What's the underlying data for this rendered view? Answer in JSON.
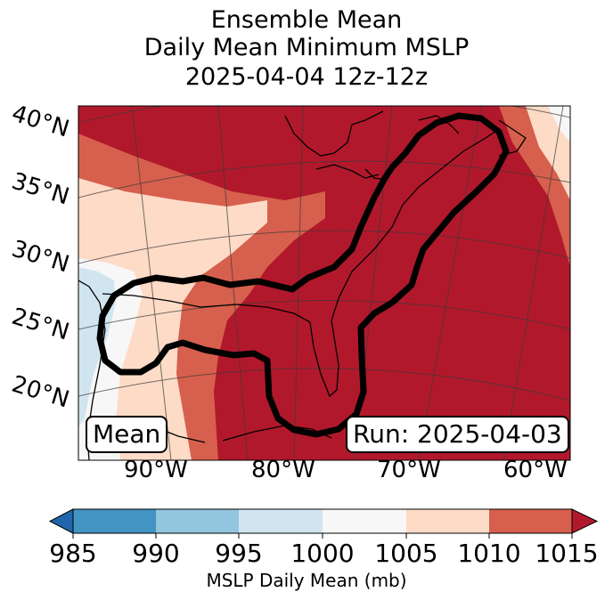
{
  "title": {
    "line1": "Ensemble Mean",
    "line2": "Daily Mean Minimum MSLP",
    "line3": "2025-04-04 12z-12z"
  },
  "map": {
    "lat_labels": [
      "40°N",
      "35°N",
      "30°N",
      "25°N",
      "20°N"
    ],
    "lon_labels": [
      "90°W",
      "80°W",
      "70°W",
      "60°W"
    ],
    "mean_label": "Mean",
    "run_label": "Run: 2025-04-03"
  },
  "colorbar": {
    "ticks": [
      "985",
      "990",
      "995",
      "1000",
      "1005",
      "1010",
      "1015"
    ],
    "label": "MSLP Daily Mean (mb)",
    "colors": {
      "lt985": "#2166ac",
      "985_990": "#4393c3",
      "990_995": "#92c5de",
      "995_1000": "#d1e5f0",
      "1000_1005": "#f7f7f7",
      "1005_1010": "#fddbc7",
      "1010_1015": "#d6604d",
      "gt1015": "#b2182b"
    }
  }
}
